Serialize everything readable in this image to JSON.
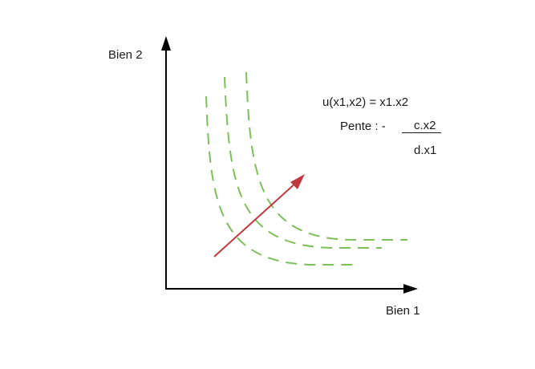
{
  "axes": {
    "y_label": "Bien 2",
    "x_label": "Bien 1"
  },
  "formula": {
    "utility": "u(x1,x2) = x1.x2",
    "slope_prefix": "Pente : -",
    "slope_numerator": "c.x2",
    "slope_denominator": "d.x1"
  },
  "colors": {
    "axis": "#000000",
    "indifference_curve": "#7dc05a",
    "direction_arrow": "#c0393d"
  },
  "icons": {
    "direction_arrow": "arrow-up-right-icon"
  }
}
